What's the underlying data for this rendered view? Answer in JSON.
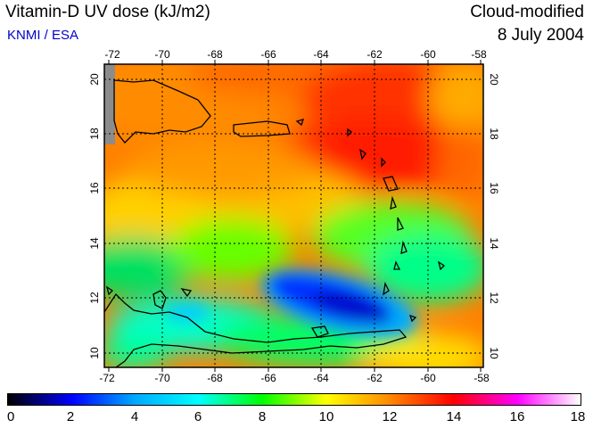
{
  "header": {
    "title": "Vitamin-D UV dose (kJ/m2)",
    "subtitle": "KNMI / ESA",
    "product": "Cloud-modified",
    "date": "8 July 2004"
  },
  "map": {
    "lon_labels": [
      "-72",
      "-70",
      "-68",
      "-66",
      "-64",
      "-62",
      "-60",
      "-58"
    ],
    "lat_labels": [
      "20",
      "18",
      "16",
      "14",
      "12",
      "10"
    ],
    "lon_range": [
      -72,
      -58
    ],
    "lat_range": [
      9.5,
      20.5
    ],
    "grid": "dotted"
  },
  "colorbar": {
    "ticks": [
      "0",
      "2",
      "4",
      "6",
      "8",
      "10",
      "12",
      "14",
      "16",
      "18"
    ],
    "range": [
      0,
      18
    ],
    "colors": [
      "#000000",
      "#0000ff",
      "#00aaff",
      "#00ffff",
      "#00ff00",
      "#ffff00",
      "#ff8800",
      "#ff0000",
      "#ff00ff",
      "#ffffff"
    ]
  }
}
